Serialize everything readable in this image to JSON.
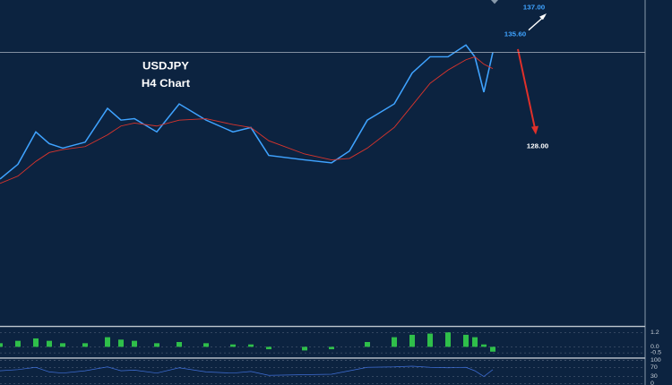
{
  "chart_data": [
    {
      "type": "line",
      "title": "USDJPY",
      "subtitle": "H4 Chart",
      "x": [
        0,
        20,
        40,
        55,
        70,
        95,
        120,
        135,
        150,
        175,
        200,
        230,
        260,
        280,
        300,
        340,
        370,
        390,
        410,
        440,
        460,
        480,
        500,
        520,
        530,
        540,
        550
      ],
      "xlim": [
        0,
        720
      ],
      "ylim": [
        115.9,
        137.85
      ],
      "reference_line": 134.4,
      "series": [
        {
          "color": "#3fa3ff",
          "values": [
            125.8,
            126.8,
            129.0,
            128.2,
            127.9,
            128.3,
            130.6,
            129.8,
            129.9,
            129.0,
            130.9,
            129.8,
            129.0,
            129.3,
            127.4,
            127.1,
            126.9,
            127.7,
            129.8,
            130.9,
            133.0,
            134.1,
            134.1,
            134.9,
            134.1,
            131.7,
            134.4
          ]
        },
        {
          "color": "#d8342c",
          "values": [
            125.5,
            126.0,
            127.0,
            127.6,
            127.8,
            128.0,
            128.8,
            129.4,
            129.6,
            129.4,
            129.8,
            129.9,
            129.5,
            129.3,
            128.4,
            127.5,
            127.1,
            127.2,
            127.9,
            129.3,
            130.8,
            132.3,
            133.2,
            133.9,
            134.1,
            133.6,
            133.3
          ]
        }
      ],
      "annotations": [
        {
          "value": 137,
          "label": "137.00"
        },
        {
          "value": 135.6,
          "label": "135.60"
        },
        {
          "value": 128,
          "label": "128.00"
        }
      ]
    },
    {
      "type": "histogram-bars",
      "color": "#2fbf4a",
      "x": [
        0,
        20,
        40,
        55,
        70,
        95,
        120,
        135,
        150,
        175,
        200,
        230,
        260,
        280,
        300,
        340,
        370,
        390,
        410,
        440,
        460,
        480,
        500,
        520,
        530,
        540,
        550
      ],
      "xlim": [
        0,
        720
      ],
      "ylim": [
        -0.8,
        1.5
      ],
      "yticks": [
        {
          "value": 1.2,
          "label": "1.2"
        },
        {
          "value": 0,
          "label": "0.0"
        },
        {
          "value": -0.5,
          "label": "-0.5"
        }
      ],
      "values": [
        0.3,
        0.5,
        0.7,
        0.5,
        0.3,
        0.3,
        0.8,
        0.6,
        0.5,
        0.3,
        0.4,
        0.3,
        0.2,
        0.2,
        -0.2,
        -0.3,
        -0.2,
        0.0,
        0.4,
        0.8,
        1.0,
        1.1,
        1.2,
        1.0,
        0.8,
        0.2,
        -0.4
      ]
    },
    {
      "type": "line",
      "color": "#3f6fd8",
      "x": [
        0,
        20,
        40,
        55,
        70,
        95,
        120,
        135,
        150,
        175,
        200,
        230,
        260,
        280,
        300,
        340,
        370,
        390,
        410,
        440,
        460,
        480,
        500,
        520,
        530,
        540,
        550
      ],
      "xlim": [
        0,
        720
      ],
      "ylim": [
        0,
        100
      ],
      "yticks": [
        {
          "value": 100,
          "label": "100"
        },
        70,
        30,
        0
      ],
      "values": [
        55,
        60,
        70,
        50,
        45,
        55,
        72,
        55,
        58,
        45,
        68,
        50,
        45,
        52,
        35,
        38,
        40,
        55,
        70,
        72,
        75,
        70,
        68,
        70,
        55,
        30,
        60
      ]
    }
  ]
}
